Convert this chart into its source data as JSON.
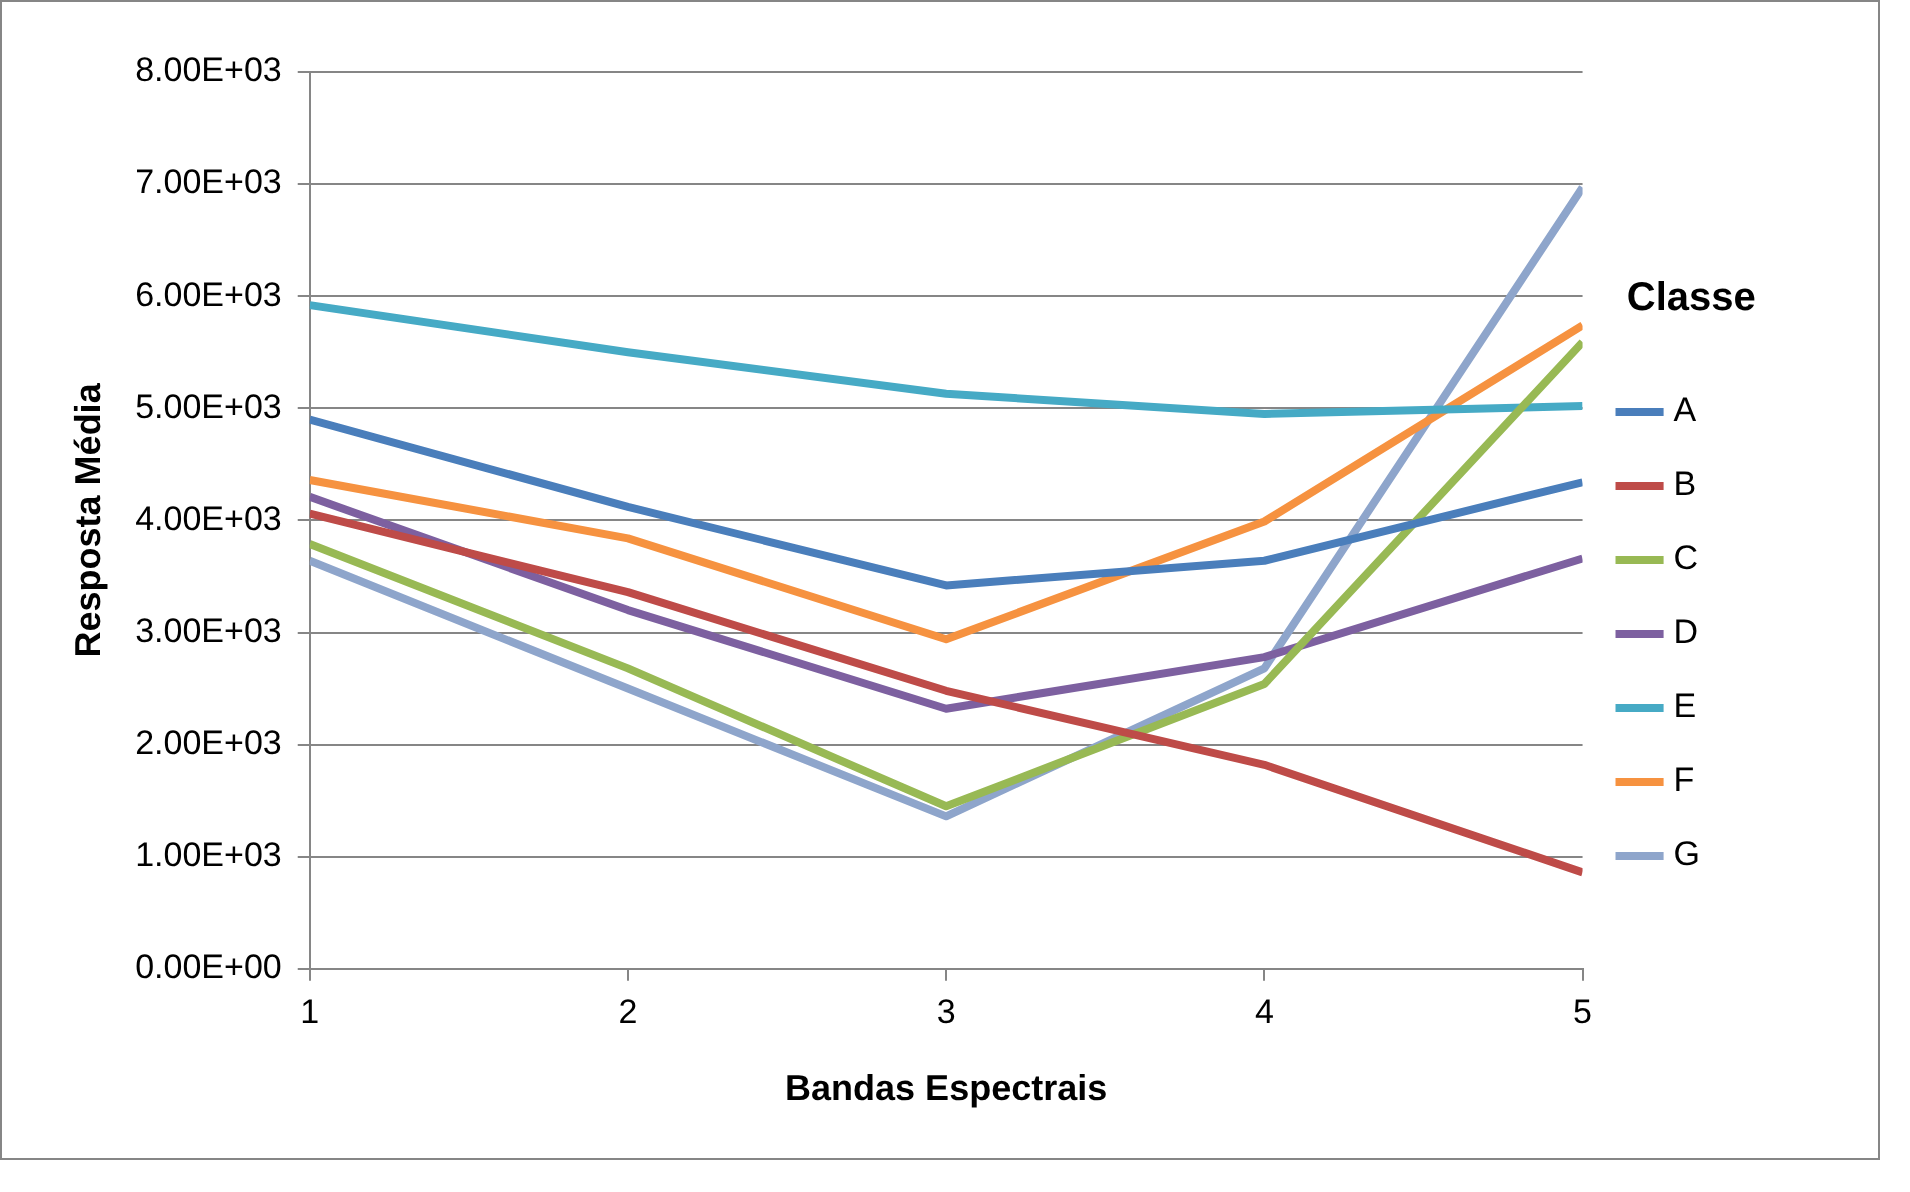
{
  "chart_data": {
    "type": "line",
    "xlabel": "Bandas Espectrais",
    "ylabel": "Resposta Média",
    "legend_title": "Classe",
    "legend": "right",
    "grid": "y",
    "marker": "none",
    "x": [
      1,
      2,
      3,
      4,
      5
    ],
    "xlim": [
      1,
      5
    ],
    "xticks": [
      1,
      2,
      3,
      4,
      5
    ],
    "ylim": [
      0,
      8000
    ],
    "yticks": [
      {
        "value": 0,
        "label": "0.00E+00"
      },
      {
        "value": 1000,
        "label": "1.00E+03"
      },
      {
        "value": 2000,
        "label": "2.00E+03"
      },
      {
        "value": 3000,
        "label": "3.00E+03"
      },
      {
        "value": 4000,
        "label": "4.00E+03"
      },
      {
        "value": 5000,
        "label": "5.00E+03"
      },
      {
        "value": 6000,
        "label": "6.00E+03"
      },
      {
        "value": 7000,
        "label": "7.00E+03"
      },
      {
        "value": 8000,
        "label": "8.00E+03"
      }
    ],
    "series": [
      {
        "name": "A",
        "color": "#4a7ebb",
        "values": [
          4900,
          4120,
          3420,
          3640,
          4340
        ]
      },
      {
        "name": "B",
        "color": "#be4b48",
        "values": [
          4060,
          3360,
          2480,
          1820,
          860
        ]
      },
      {
        "name": "C",
        "color": "#98b954",
        "values": [
          3790,
          2680,
          1450,
          2540,
          5590
        ]
      },
      {
        "name": "D",
        "color": "#7d60a0",
        "values": [
          4210,
          3200,
          2320,
          2780,
          3660
        ]
      },
      {
        "name": "E",
        "color": "#46aac5",
        "values": [
          5920,
          5500,
          5130,
          4950,
          5020
        ]
      },
      {
        "name": "F",
        "color": "#f69240",
        "values": [
          4360,
          3840,
          2940,
          3990,
          5740
        ]
      },
      {
        "name": "G",
        "color": "#8ea5cb",
        "values": [
          3640,
          2500,
          1360,
          2680,
          6970
        ]
      }
    ]
  }
}
